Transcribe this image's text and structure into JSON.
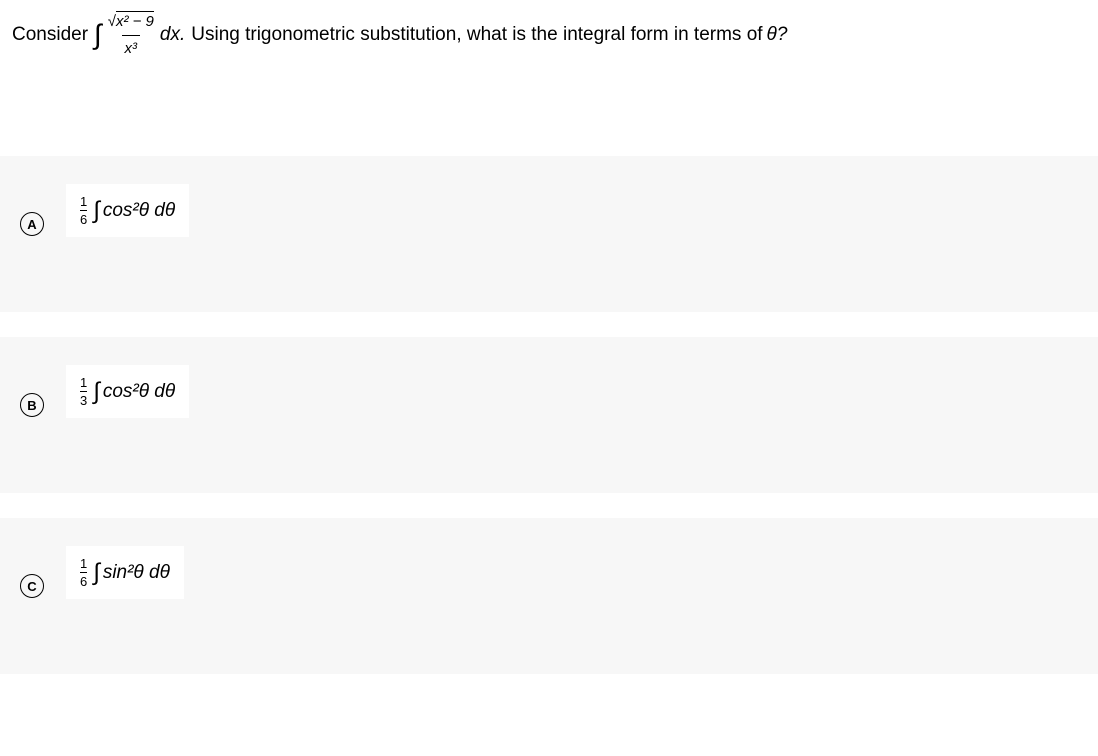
{
  "question": {
    "prefix": "Consider",
    "integral_sign": "∫",
    "numerator_sqrt_prefix": "√",
    "numerator_inner": "x² − 9",
    "denominator": "x³",
    "dx": "dx.",
    "suffix": "Using trigonometric substitution, what is the integral form in terms of",
    "theta": "θ?",
    "colors": {
      "text": "#000000",
      "background": "#ffffff",
      "option_bg": "#f7f7f7",
      "option_content_bg": "#ffffff"
    }
  },
  "options": [
    {
      "letter": "A",
      "frac_num": "1",
      "frac_den": "6",
      "integral": "∫",
      "func": "cos²θ",
      "dvar": "dθ"
    },
    {
      "letter": "B",
      "frac_num": "1",
      "frac_den": "3",
      "integral": "∫",
      "func": "cos²θ",
      "dvar": "dθ"
    },
    {
      "letter": "C",
      "frac_num": "1",
      "frac_den": "6",
      "integral": "∫",
      "func": "sin²θ",
      "dvar": "dθ"
    }
  ]
}
